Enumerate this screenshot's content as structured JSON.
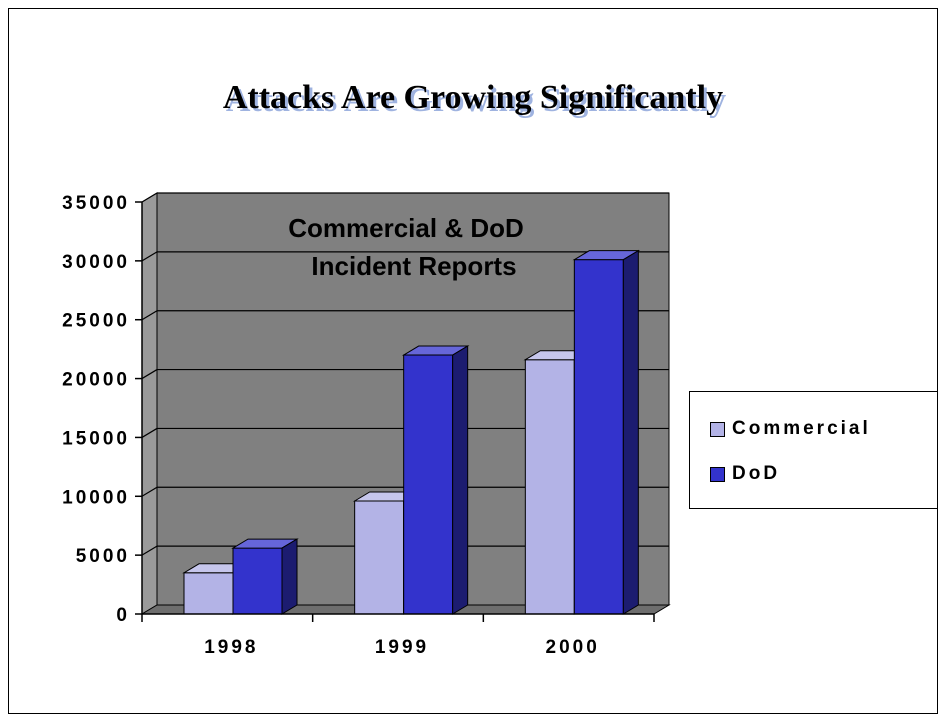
{
  "slide": {
    "title": "Attacks Are Growing Significantly"
  },
  "chart_data": {
    "type": "bar",
    "title": "",
    "annotation_lines": [
      "Commercial & DoD",
      "Incident Reports"
    ],
    "categories": [
      "1998",
      "1999",
      "2000"
    ],
    "series": [
      {
        "name": "Commercial",
        "values": [
          3500,
          9600,
          21600
        ],
        "color": "#b3b3e6"
      },
      {
        "name": "DoD",
        "values": [
          5600,
          22000,
          30100
        ],
        "color": "#3333cc"
      }
    ],
    "ylim": [
      0,
      35000
    ],
    "yticks": [
      "0",
      "5000",
      "10000",
      "15000",
      "20000",
      "25000",
      "30000",
      "35000"
    ],
    "grid": true,
    "plot_background": "#808080",
    "legend_position": "right"
  }
}
